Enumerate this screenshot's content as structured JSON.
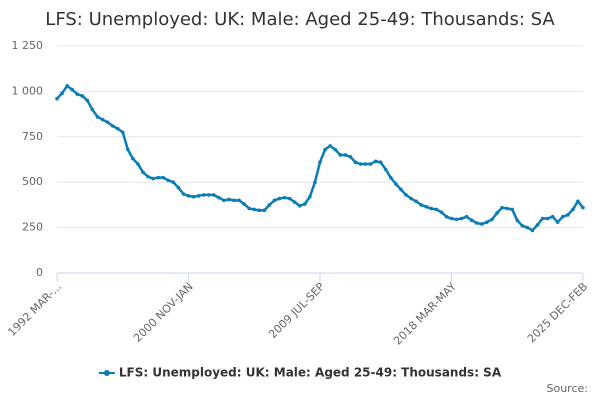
{
  "chart_data": {
    "type": "line",
    "title": "LFS: Unemployed: UK: Male: Aged 25-49: Thousands: SA",
    "source": "Source:",
    "categories": [
      "1992 MAR-...",
      null,
      null,
      null,
      null,
      null,
      null,
      null,
      null,
      null,
      null,
      null,
      null,
      null,
      null,
      null,
      null,
      null,
      null,
      null,
      null,
      null,
      null,
      null,
      null,
      null,
      "2000 NOV-JAN",
      null,
      null,
      null,
      null,
      null,
      null,
      null,
      null,
      null,
      null,
      null,
      null,
      null,
      null,
      null,
      null,
      null,
      null,
      null,
      null,
      null,
      null,
      null,
      null,
      null,
      "2009 JUL-SEP",
      null,
      null,
      null,
      null,
      null,
      null,
      null,
      null,
      null,
      null,
      null,
      null,
      null,
      null,
      null,
      null,
      null,
      null,
      null,
      null,
      null,
      null,
      null,
      null,
      null,
      "2018 MAR-MAY",
      null,
      null,
      null,
      null,
      null,
      null,
      null,
      null,
      null,
      null,
      null,
      null,
      null,
      null,
      null,
      null,
      null,
      null,
      null,
      null,
      null,
      null,
      null,
      null,
      null,
      "2025 DEC-FEB"
    ],
    "series": [
      {
        "name": "LFS: Unemployed: UK: Male: Aged 25-49: Thousands: SA",
        "color": "#0a7cb6",
        "values": [
          960,
          990,
          1030,
          1010,
          985,
          975,
          950,
          900,
          860,
          845,
          830,
          810,
          795,
          775,
          680,
          630,
          600,
          555,
          530,
          520,
          525,
          525,
          510,
          500,
          470,
          435,
          425,
          420,
          425,
          430,
          430,
          430,
          415,
          400,
          405,
          400,
          400,
          380,
          355,
          350,
          345,
          345,
          375,
          400,
          410,
          415,
          410,
          390,
          370,
          380,
          420,
          500,
          610,
          680,
          700,
          680,
          650,
          650,
          640,
          610,
          600,
          600,
          600,
          615,
          610,
          570,
          525,
          490,
          460,
          430,
          410,
          395,
          375,
          365,
          355,
          350,
          335,
          310,
          300,
          295,
          300,
          310,
          290,
          275,
          270,
          280,
          295,
          330,
          360,
          355,
          350,
          290,
          260,
          250,
          235,
          265,
          300,
          300,
          310,
          280,
          310,
          320,
          350,
          395,
          360
        ]
      }
    ],
    "ylim": [
      0,
      1250
    ],
    "yticks": [
      0,
      250,
      500,
      750,
      {
        "value": 1000,
        "label": "1 000"
      },
      {
        "value": 1250,
        "label": "1 250"
      }
    ],
    "grid": true
  }
}
